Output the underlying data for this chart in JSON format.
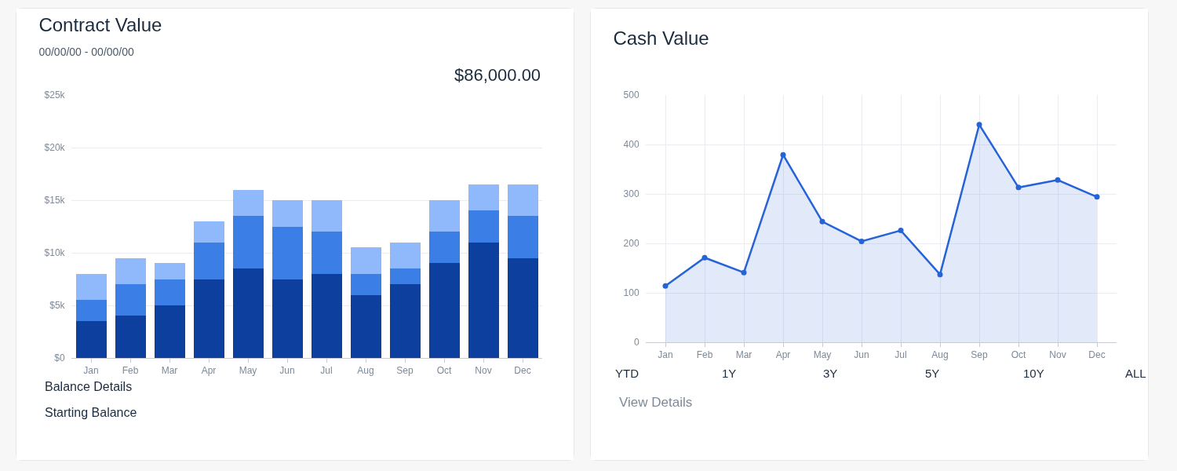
{
  "chart_data": [
    {
      "type": "bar",
      "title": "Contract Value",
      "subtitle": "00/00/00 - 00/00/00",
      "stacked": true,
      "categories": [
        "Jan",
        "Feb",
        "Mar",
        "Apr",
        "May",
        "Jun",
        "Jul",
        "Aug",
        "Sep",
        "Oct",
        "Nov",
        "Dec"
      ],
      "series": [
        {
          "color": "#0d3f9e",
          "values": [
            3500,
            4000,
            5000,
            7500,
            8500,
            7500,
            8000,
            6000,
            7000,
            9000,
            11000,
            9500
          ]
        },
        {
          "color": "#3b7fe6",
          "values": [
            2000,
            3000,
            2500,
            3500,
            5000,
            5000,
            4000,
            2000,
            1500,
            3000,
            3000,
            4000
          ]
        },
        {
          "color": "#8fb9fb",
          "values": [
            2500,
            2500,
            1500,
            2000,
            2500,
            2500,
            3000,
            2500,
            2500,
            3000,
            2500,
            3000
          ]
        }
      ],
      "ylim": [
        0,
        25000
      ],
      "yticks": [
        {
          "value": 0,
          "label": "$0"
        },
        {
          "value": 5000,
          "label": "$5k"
        },
        {
          "value": 10000,
          "label": "$10k"
        },
        {
          "value": 15000,
          "label": "$15k"
        },
        {
          "value": 20000,
          "label": "$20k"
        },
        {
          "value": 25000,
          "label": "$25k"
        }
      ],
      "grid": "y",
      "annotations": [
        "$86,000.00",
        "Balance Details",
        "Starting Balance"
      ]
    },
    {
      "type": "area",
      "title": "Cash Value",
      "categories": [
        "Jan",
        "Feb",
        "Mar",
        "Apr",
        "May",
        "Jun",
        "Jul",
        "Aug",
        "Sep",
        "Oct",
        "Nov",
        "Dec"
      ],
      "series": [
        {
          "color": "#2563d6",
          "values": [
            114,
            171,
            141,
            379,
            244,
            204,
            226,
            137,
            440,
            313,
            328,
            294
          ]
        }
      ],
      "ylim": [
        0,
        500
      ],
      "yticks": [
        0,
        100,
        200,
        300,
        400,
        500
      ],
      "grid": true,
      "marker": "circle",
      "line_style": "solid",
      "annotations": [
        "YTD",
        "1Y",
        "3Y",
        "5Y",
        "10Y",
        "ALL",
        "View Details"
      ]
    }
  ]
}
